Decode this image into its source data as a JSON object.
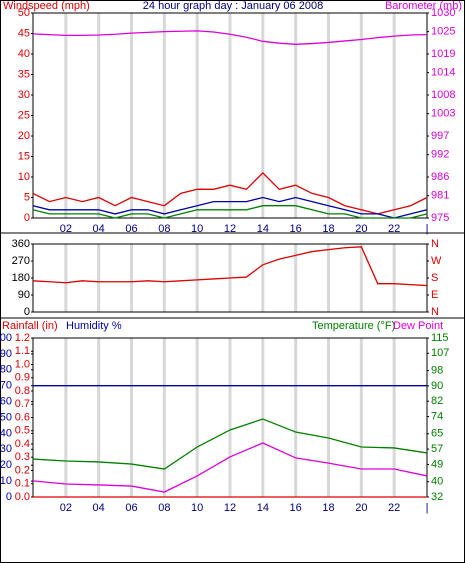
{
  "chart_data": [
    {
      "type": "line",
      "title": "24 hour graph day : January 06 2008",
      "ylabel": "Windspeed (mph)",
      "ycolor": "#dd0000",
      "y2label": "Barometer (mb)",
      "y2color": "#dd00dd",
      "x": [
        0,
        1,
        2,
        3,
        4,
        5,
        6,
        7,
        8,
        9,
        10,
        11,
        12,
        13,
        14,
        15,
        16,
        17,
        18,
        19,
        20,
        21,
        22,
        23,
        24
      ],
      "xlim": [
        0,
        24
      ],
      "xticks": [
        {
          "value": 2,
          "label": "02"
        },
        {
          "value": 4,
          "label": "04"
        },
        {
          "value": 6,
          "label": "06"
        },
        {
          "value": 8,
          "label": "08"
        },
        10,
        12,
        14,
        16,
        18,
        20,
        22,
        {
          "value": 24,
          "label": "|"
        }
      ],
      "ylim": [
        0,
        50
      ],
      "yticks": [
        0,
        5,
        10,
        15,
        20,
        25,
        30,
        35,
        40,
        45,
        50
      ],
      "y2lim": [
        975,
        1030
      ],
      "y2ticks": [
        975,
        981,
        986,
        992,
        997,
        1003,
        1008,
        1014,
        1019,
        1025,
        1030
      ],
      "series": [
        {
          "color": "#dd0000",
          "values": [
            6,
            4,
            5,
            4,
            5,
            3,
            5,
            4,
            3,
            6,
            7,
            7,
            8,
            7,
            11,
            7,
            8,
            6,
            5,
            3,
            2,
            1,
            2,
            3,
            5
          ]
        },
        {
          "color": "#0000aa",
          "values": [
            3,
            2,
            2,
            2,
            2,
            1,
            2,
            2,
            1,
            2,
            3,
            4,
            4,
            4,
            5,
            4,
            5,
            4,
            3,
            2,
            1,
            1,
            0,
            1,
            2
          ]
        },
        {
          "color": "#008000",
          "values": [
            2,
            1,
            1,
            1,
            1,
            0,
            1,
            1,
            0,
            1,
            2,
            2,
            2,
            2,
            3,
            3,
            3,
            2,
            1,
            1,
            0,
            0,
            0,
            0,
            1
          ]
        },
        {
          "color": "#dd00dd",
          "axis": "y2",
          "values": [
            1024.4,
            1024.2,
            1024.0,
            1024.0,
            1024.1,
            1024.3,
            1024.6,
            1024.8,
            1025.0,
            1025.1,
            1025.2,
            1024.9,
            1024.3,
            1023.5,
            1022.4,
            1021.9,
            1021.6,
            1021.8,
            1022.1,
            1022.5,
            1022.9,
            1023.4,
            1023.8,
            1024.1,
            1024.2
          ]
        }
      ]
    },
    {
      "type": "line",
      "ycolor": "#000000",
      "y2color": "#dd0000",
      "x": [
        0,
        1,
        2,
        3,
        4,
        5,
        6,
        7,
        8,
        9,
        10,
        11,
        12,
        13,
        14,
        15,
        16,
        17,
        18,
        19,
        20,
        21,
        22,
        23,
        24
      ],
      "xlim": [
        0,
        24
      ],
      "ylim": [
        0,
        360
      ],
      "yticks": [
        0,
        90,
        180,
        270,
        360
      ],
      "y2lim": [
        0,
        360
      ],
      "y2ticks": [
        {
          "value": 0,
          "label": "N"
        },
        {
          "value": 90,
          "label": "E"
        },
        {
          "value": 180,
          "label": "S"
        },
        {
          "value": 270,
          "label": "W"
        },
        {
          "value": 360,
          "label": "N"
        }
      ],
      "series": [
        {
          "color": "#dd0000",
          "values": [
            165,
            160,
            155,
            165,
            160,
            160,
            160,
            165,
            160,
            165,
            170,
            175,
            180,
            185,
            250,
            280,
            300,
            320,
            330,
            340,
            345,
            150,
            150,
            145,
            140
          ]
        }
      ]
    },
    {
      "type": "line",
      "ylabel": "Rainfall (in)",
      "ycolor": "#dd0000",
      "y3label": "Humidity %",
      "y3color": "#0000aa",
      "y2label": "Temperature (°F)",
      "y2color": "#008000",
      "y2label2": "Dew Point",
      "y2label2color": "#dd00dd",
      "x": [
        0,
        2,
        4,
        6,
        8,
        10,
        12,
        14,
        16,
        18,
        20,
        22,
        24
      ],
      "xlim": [
        0,
        24
      ],
      "xticks": [
        {
          "value": 2,
          "label": "02"
        },
        {
          "value": 4,
          "label": "04"
        },
        {
          "value": 6,
          "label": "06"
        },
        {
          "value": 8,
          "label": "08"
        },
        10,
        12,
        14,
        16,
        18,
        20,
        22,
        {
          "value": 24,
          "label": "|"
        }
      ],
      "ylim": [
        0,
        1.2
      ],
      "yticks": [
        {
          "value": 0,
          "label": "0.0"
        },
        0.1,
        0.2,
        0.3,
        0.4,
        0.5,
        0.6,
        0.7,
        0.8,
        0.9,
        {
          "value": 1,
          "label": "1.0"
        },
        1.1,
        1.2
      ],
      "y3lim": [
        0,
        100
      ],
      "y3ticks": [
        0,
        10,
        20,
        30,
        40,
        50,
        60,
        70,
        80,
        90,
        100
      ],
      "y2lim": [
        32,
        115
      ],
      "y2ticks": [
        32,
        40,
        49,
        57,
        65,
        74,
        82,
        90,
        98,
        107,
        115
      ],
      "series": [
        {
          "color": "#0000aa",
          "axis": "y3",
          "values": [
            70,
            70,
            70,
            70,
            70,
            70,
            70,
            70,
            70,
            70,
            70,
            70,
            70
          ]
        },
        {
          "color": "#dd0000",
          "values": [
            0,
            0,
            0,
            0,
            0,
            0,
            0,
            0,
            0,
            0,
            0,
            0,
            0
          ]
        },
        {
          "color": "#008000",
          "axis": "y2",
          "values": [
            51.8,
            50.8,
            50.3,
            49.2,
            46.6,
            58.1,
            67.0,
            72.7,
            65.9,
            62.8,
            58.1,
            57.6,
            55.0
          ]
        },
        {
          "color": "#dd00dd",
          "axis": "y2",
          "values": [
            40.4,
            38.8,
            38.3,
            37.7,
            34.6,
            43.0,
            52.9,
            60.2,
            52.4,
            49.7,
            46.6,
            46.6,
            43.0
          ]
        }
      ]
    }
  ]
}
